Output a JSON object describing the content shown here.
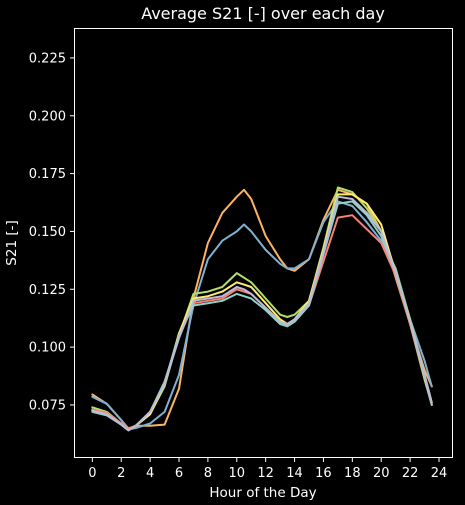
{
  "chart_data": {
    "type": "line",
    "title": "Average S21 [-] over each day",
    "xlabel": "Hour of the Day",
    "ylabel": "S21 [-]",
    "xlim": [
      -1.2,
      24.9
    ],
    "ylim": [
      0.0525,
      0.2375
    ],
    "xticks": [
      0,
      2,
      4,
      6,
      8,
      10,
      12,
      14,
      16,
      18,
      20,
      22,
      24
    ],
    "yticks": [
      0.075,
      0.1,
      0.125,
      0.15,
      0.175,
      0.2,
      0.225
    ],
    "ytick_labels": [
      "0.075",
      "0.100",
      "0.125",
      "0.150",
      "0.175",
      "0.200",
      "0.225"
    ],
    "grid": false,
    "x": [
      0,
      1,
      2,
      2.5,
      3,
      4,
      5,
      6,
      7,
      8,
      9,
      10,
      10.5,
      11,
      12,
      13,
      13.5,
      14,
      15,
      16,
      17,
      18,
      19,
      20,
      21,
      22,
      23,
      23.5
    ],
    "series": [
      {
        "color": "#fdb462",
        "values": [
          0.0795,
          0.0755,
          0.0685,
          0.0648,
          0.066,
          0.066,
          0.0665,
          0.082,
          0.121,
          0.145,
          0.158,
          0.165,
          0.168,
          0.164,
          0.148,
          0.138,
          0.134,
          0.133,
          0.138,
          0.155,
          0.168,
          0.166,
          0.162,
          0.15,
          0.13,
          0.11,
          0.09,
          0.083
        ]
      },
      {
        "color": "#80b1d3",
        "values": [
          0.0785,
          0.0755,
          0.0685,
          0.0645,
          0.065,
          0.067,
          0.072,
          0.088,
          0.118,
          0.138,
          0.146,
          0.15,
          0.153,
          0.15,
          0.142,
          0.136,
          0.134,
          0.134,
          0.138,
          0.154,
          0.163,
          0.161,
          0.154,
          0.146,
          0.134,
          0.112,
          0.094,
          0.083
        ]
      },
      {
        "color": "#b3de69",
        "values": [
          0.074,
          0.072,
          0.067,
          0.0645,
          0.066,
          0.071,
          0.083,
          0.105,
          0.123,
          0.124,
          0.126,
          0.132,
          0.13,
          0.128,
          0.121,
          0.114,
          0.113,
          0.114,
          0.12,
          0.143,
          0.169,
          0.167,
          0.16,
          0.15,
          0.133,
          0.112,
          0.088,
          0.076
        ]
      },
      {
        "color": "#ffed6f",
        "values": [
          0.073,
          0.071,
          0.067,
          0.0645,
          0.066,
          0.071,
          0.084,
          0.106,
          0.121,
          0.122,
          0.124,
          0.128,
          0.127,
          0.126,
          0.119,
          0.112,
          0.11,
          0.112,
          0.12,
          0.142,
          0.166,
          0.166,
          0.162,
          0.153,
          0.132,
          0.11,
          0.086,
          0.075
        ]
      },
      {
        "color": "#fb8072",
        "values": [
          0.073,
          0.0715,
          0.067,
          0.0645,
          0.066,
          0.072,
          0.085,
          0.104,
          0.119,
          0.12,
          0.121,
          0.125,
          0.124,
          0.123,
          0.117,
          0.111,
          0.109,
          0.111,
          0.118,
          0.137,
          0.156,
          0.157,
          0.151,
          0.145,
          0.131,
          0.11,
          0.087,
          0.075
        ]
      },
      {
        "color": "#8dd3c7",
        "values": [
          0.072,
          0.0705,
          0.0665,
          0.064,
          0.066,
          0.072,
          0.085,
          0.105,
          0.118,
          0.119,
          0.12,
          0.123,
          0.122,
          0.121,
          0.116,
          0.11,
          0.109,
          0.111,
          0.118,
          0.14,
          0.162,
          0.163,
          0.157,
          0.148,
          0.132,
          0.111,
          0.087,
          0.075
        ]
      },
      {
        "color": "#bebada",
        "values": [
          0.0725,
          0.071,
          0.0665,
          0.064,
          0.066,
          0.072,
          0.084,
          0.104,
          0.12,
          0.121,
          0.122,
          0.126,
          0.125,
          0.123,
          0.117,
          0.111,
          0.11,
          0.112,
          0.119,
          0.141,
          0.165,
          0.164,
          0.158,
          0.15,
          0.132,
          0.111,
          0.088,
          0.076
        ]
      }
    ]
  }
}
